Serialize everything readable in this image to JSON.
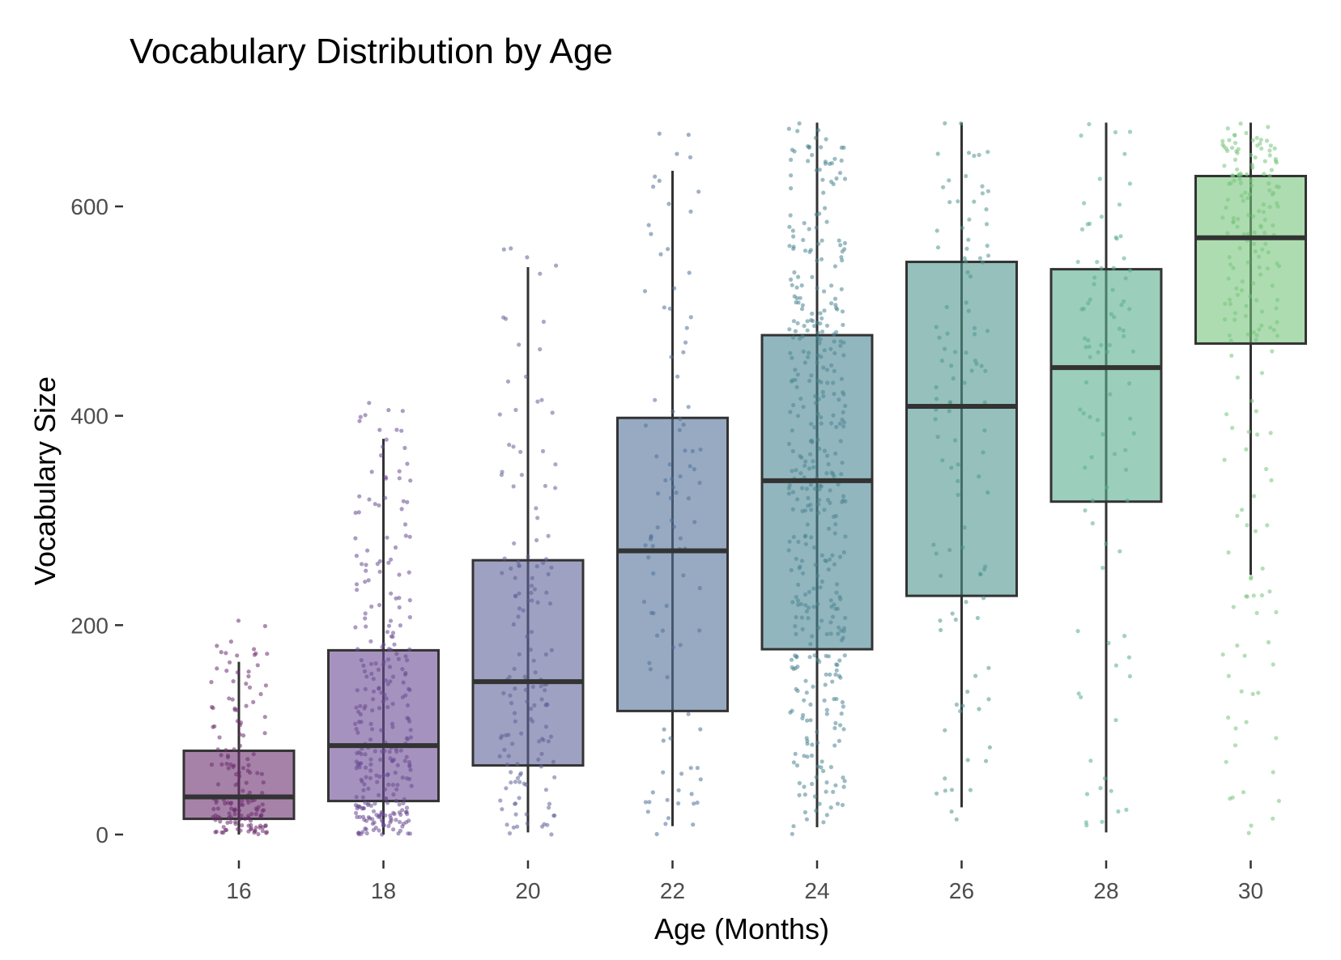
{
  "chart_data": {
    "type": "box",
    "title": "Vocabulary Distribution by Age",
    "xlabel": "Age (Months)",
    "ylabel": "Vocabulary Size",
    "categories": [
      "16",
      "18",
      "20",
      "22",
      "24",
      "26",
      "28",
      "30"
    ],
    "yticks": [
      0,
      200,
      400,
      600
    ],
    "ylim": [
      -45,
      680
    ],
    "grid": false,
    "legend": "none",
    "boxes": [
      {
        "category": "16",
        "color": "#6b2e6e",
        "whisker_low": 0,
        "q1": 15,
        "median": 36,
        "q3": 80,
        "whisker_high": 165,
        "n_points": 160
      },
      {
        "category": "18",
        "color": "#6a4a92",
        "whisker_low": 0,
        "q1": 32,
        "median": 85,
        "q3": 176,
        "whisker_high": 378,
        "n_points": 300
      },
      {
        "category": "20",
        "color": "#5e6297",
        "whisker_low": 2,
        "q1": 66,
        "median": 146,
        "q3": 262,
        "whisker_high": 542,
        "n_points": 150
      },
      {
        "category": "22",
        "color": "#51719a",
        "whisker_low": 8,
        "q1": 118,
        "median": 271,
        "q3": 398,
        "whisker_high": 634,
        "n_points": 100
      },
      {
        "category": "24",
        "color": "#4a8592",
        "whisker_low": 7,
        "q1": 177,
        "median": 338,
        "q3": 477,
        "whisker_high": 680,
        "n_points": 420
      },
      {
        "category": "26",
        "color": "#4e968f",
        "whisker_low": 26,
        "q1": 228,
        "median": 409,
        "q3": 547,
        "whisker_high": 680,
        "n_points": 110
      },
      {
        "category": "28",
        "color": "#58ad8e",
        "whisker_low": 2,
        "q1": 318,
        "median": 446,
        "q3": 540,
        "whisker_high": 680,
        "n_points": 90
      },
      {
        "category": "30",
        "color": "#76c57b",
        "whisker_low": 248,
        "q1": 469,
        "median": 570,
        "q3": 629,
        "whisker_high": 680,
        "n_points": 200
      }
    ]
  }
}
